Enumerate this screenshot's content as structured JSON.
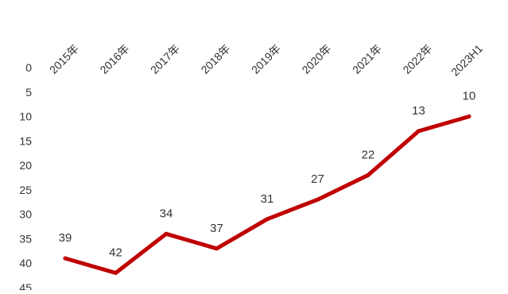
{
  "chart_data": {
    "type": "line",
    "categories": [
      "2015年",
      "2016年",
      "2017年",
      "2018年",
      "2019年",
      "2020年",
      "2021年",
      "2022年",
      "2023H1"
    ],
    "series": [
      {
        "values": [
          39,
          42,
          34,
          37,
          31,
          27,
          22,
          13,
          10
        ],
        "color": "#C00000"
      }
    ],
    "data_labels": [
      "39",
      "42",
      "34",
      "37",
      "31",
      "27",
      "22",
      "13",
      "10"
    ],
    "ylim": [
      0,
      45
    ],
    "y_reversed": true,
    "y_ticks": [
      "0",
      "5",
      "10",
      "15",
      "20",
      "25",
      "30",
      "35",
      "40",
      "45"
    ],
    "x_axis_position": "top",
    "x_label_rotation": -45,
    "gridlines": false,
    "legend": "none",
    "title": "",
    "xlabel": "",
    "ylabel": ""
  }
}
